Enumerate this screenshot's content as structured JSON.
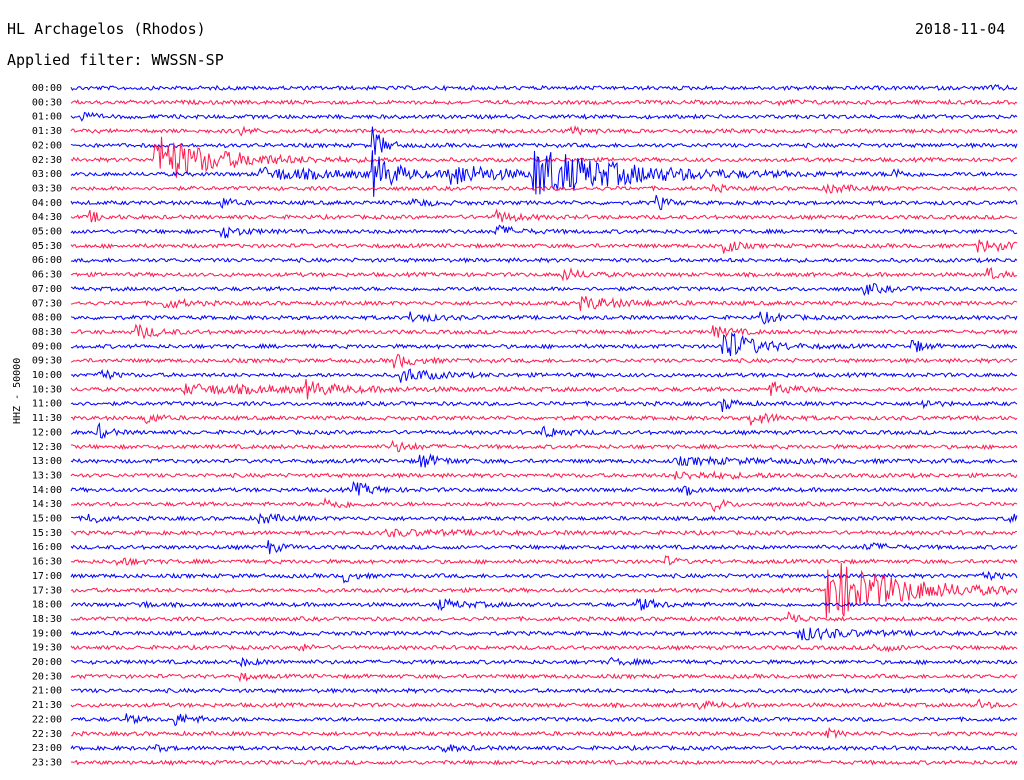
{
  "header": {
    "station": "HL Archagelos (Rhodos)",
    "date": "2018-11-04",
    "filter": "Applied filter: WWSSN-SP"
  },
  "axis": {
    "channel_label": "HHZ - 50000"
  },
  "chart_data": {
    "type": "line",
    "title": "",
    "row_labels": [
      "00:00",
      "00:30",
      "01:00",
      "01:30",
      "02:00",
      "02:30",
      "03:00",
      "03:30",
      "04:00",
      "04:30",
      "05:00",
      "05:30",
      "06:00",
      "06:30",
      "07:00",
      "07:30",
      "08:00",
      "08:30",
      "09:00",
      "09:30",
      "10:00",
      "10:30",
      "11:00",
      "11:30",
      "12:00",
      "12:30",
      "13:00",
      "13:30",
      "14:00",
      "14:30",
      "15:00",
      "15:30",
      "16:00",
      "16:30",
      "17:00",
      "17:30",
      "18:00",
      "18:30",
      "19:00",
      "19:30",
      "20:00",
      "20:30",
      "21:00",
      "21:30",
      "22:00",
      "22:30",
      "23:00",
      "23:30"
    ],
    "row_minutes": 30,
    "colors": [
      "#0000ff",
      "#ff1a4f"
    ],
    "events": [
      {
        "row": 0,
        "t": 0.97,
        "amp": 0.3,
        "dur": 0.015
      },
      {
        "row": 1,
        "t": 0.75,
        "amp": 0.25,
        "dur": 0.02
      },
      {
        "row": 2,
        "t": 0.01,
        "amp": 0.8,
        "dur": 0.01
      },
      {
        "row": 3,
        "t": 0.18,
        "amp": 0.6,
        "dur": 0.01
      },
      {
        "row": 3,
        "t": 0.53,
        "amp": 0.4,
        "dur": 0.02
      },
      {
        "row": 4,
        "t": 0.32,
        "amp": 2.5,
        "dur": 0.01
      },
      {
        "row": 5,
        "t": 0.09,
        "amp": 3.5,
        "dur": 0.06
      },
      {
        "row": 6,
        "t": 0.2,
        "amp": 0.8,
        "dur": 0.1
      },
      {
        "row": 6,
        "t": 0.32,
        "amp": 3.0,
        "dur": 0.02
      },
      {
        "row": 6,
        "t": 0.4,
        "amp": 1.5,
        "dur": 0.05
      },
      {
        "row": 6,
        "t": 0.49,
        "amp": 3.5,
        "dur": 0.09
      },
      {
        "row": 6,
        "t": 0.87,
        "amp": 0.7,
        "dur": 0.01
      },
      {
        "row": 7,
        "t": 0.68,
        "amp": 0.5,
        "dur": 0.01
      },
      {
        "row": 7,
        "t": 0.8,
        "amp": 0.6,
        "dur": 0.02
      },
      {
        "row": 8,
        "t": 0.16,
        "amp": 0.7,
        "dur": 0.01
      },
      {
        "row": 8,
        "t": 0.36,
        "amp": 0.5,
        "dur": 0.02
      },
      {
        "row": 8,
        "t": 0.62,
        "amp": 1.0,
        "dur": 0.01
      },
      {
        "row": 9,
        "t": 0.02,
        "amp": 0.8,
        "dur": 0.01
      },
      {
        "row": 9,
        "t": 0.45,
        "amp": 0.8,
        "dur": 0.02
      },
      {
        "row": 10,
        "t": 0.16,
        "amp": 0.8,
        "dur": 0.02
      },
      {
        "row": 10,
        "t": 0.45,
        "amp": 0.8,
        "dur": 0.02
      },
      {
        "row": 11,
        "t": 0.69,
        "amp": 1.6,
        "dur": 0.01
      },
      {
        "row": 11,
        "t": 0.96,
        "amp": 0.8,
        "dur": 0.03
      },
      {
        "row": 13,
        "t": 0.52,
        "amp": 0.8,
        "dur": 0.02
      },
      {
        "row": 13,
        "t": 0.97,
        "amp": 1.0,
        "dur": 0.01
      },
      {
        "row": 14,
        "t": 0.84,
        "amp": 0.7,
        "dur": 0.02
      },
      {
        "row": 15,
        "t": 0.1,
        "amp": 0.7,
        "dur": 0.02
      },
      {
        "row": 15,
        "t": 0.54,
        "amp": 0.9,
        "dur": 0.04
      },
      {
        "row": 16,
        "t": 0.36,
        "amp": 0.7,
        "dur": 0.02
      },
      {
        "row": 16,
        "t": 0.73,
        "amp": 0.7,
        "dur": 0.02
      },
      {
        "row": 17,
        "t": 0.07,
        "amp": 1.0,
        "dur": 0.02
      },
      {
        "row": 17,
        "t": 0.68,
        "amp": 0.7,
        "dur": 0.02
      },
      {
        "row": 18,
        "t": 0.69,
        "amp": 2.4,
        "dur": 0.03
      },
      {
        "row": 18,
        "t": 0.89,
        "amp": 1.0,
        "dur": 0.01
      },
      {
        "row": 19,
        "t": 0.34,
        "amp": 1.0,
        "dur": 0.02
      },
      {
        "row": 20,
        "t": 0.03,
        "amp": 1.0,
        "dur": 0.01
      },
      {
        "row": 20,
        "t": 0.35,
        "amp": 1.0,
        "dur": 0.03
      },
      {
        "row": 21,
        "t": 0.12,
        "amp": 0.6,
        "dur": 0.14
      },
      {
        "row": 21,
        "t": 0.25,
        "amp": 1.0,
        "dur": 0.02
      },
      {
        "row": 21,
        "t": 0.74,
        "amp": 1.0,
        "dur": 0.02
      },
      {
        "row": 22,
        "t": 0.69,
        "amp": 1.0,
        "dur": 0.01
      },
      {
        "row": 22,
        "t": 0.9,
        "amp": 0.7,
        "dur": 0.01
      },
      {
        "row": 23,
        "t": 0.08,
        "amp": 0.9,
        "dur": 0.01
      },
      {
        "row": 23,
        "t": 0.72,
        "amp": 0.9,
        "dur": 0.02
      },
      {
        "row": 24,
        "t": 0.03,
        "amp": 1.0,
        "dur": 0.01
      },
      {
        "row": 24,
        "t": 0.5,
        "amp": 0.8,
        "dur": 0.02
      },
      {
        "row": 25,
        "t": 0.34,
        "amp": 0.7,
        "dur": 0.02
      },
      {
        "row": 26,
        "t": 0.37,
        "amp": 1.0,
        "dur": 0.02
      },
      {
        "row": 26,
        "t": 0.64,
        "amp": 0.4,
        "dur": 0.1
      },
      {
        "row": 27,
        "t": 0.64,
        "amp": 0.4,
        "dur": 0.08
      },
      {
        "row": 28,
        "t": 0.3,
        "amp": 0.9,
        "dur": 0.02
      },
      {
        "row": 28,
        "t": 0.65,
        "amp": 0.6,
        "dur": 0.01
      },
      {
        "row": 29,
        "t": 0.27,
        "amp": 0.7,
        "dur": 0.02
      },
      {
        "row": 29,
        "t": 0.68,
        "amp": 1.0,
        "dur": 0.01
      },
      {
        "row": 30,
        "t": 0.02,
        "amp": 0.9,
        "dur": 0.01
      },
      {
        "row": 30,
        "t": 0.2,
        "amp": 0.7,
        "dur": 0.02
      },
      {
        "row": 30,
        "t": 0.99,
        "amp": 0.8,
        "dur": 0.01
      },
      {
        "row": 31,
        "t": 0.33,
        "amp": 0.4,
        "dur": 0.08
      },
      {
        "row": 32,
        "t": 0.21,
        "amp": 0.9,
        "dur": 0.01
      },
      {
        "row": 32,
        "t": 0.84,
        "amp": 0.6,
        "dur": 0.02
      },
      {
        "row": 33,
        "t": 0.05,
        "amp": 0.5,
        "dur": 0.02
      },
      {
        "row": 33,
        "t": 0.63,
        "amp": 0.6,
        "dur": 0.01
      },
      {
        "row": 34,
        "t": 0.29,
        "amp": 0.8,
        "dur": 0.01
      },
      {
        "row": 34,
        "t": 0.96,
        "amp": 0.6,
        "dur": 0.02
      },
      {
        "row": 35,
        "t": 0.8,
        "amp": 4.5,
        "dur": 0.07
      },
      {
        "row": 36,
        "t": 0.07,
        "amp": 0.6,
        "dur": 0.01
      },
      {
        "row": 36,
        "t": 0.39,
        "amp": 0.6,
        "dur": 0.03
      },
      {
        "row": 36,
        "t": 0.6,
        "amp": 0.8,
        "dur": 0.02
      },
      {
        "row": 37,
        "t": 0.76,
        "amp": 1.0,
        "dur": 0.01
      },
      {
        "row": 38,
        "t": 0.77,
        "amp": 0.9,
        "dur": 0.05
      },
      {
        "row": 39,
        "t": 0.24,
        "amp": 0.7,
        "dur": 0.01
      },
      {
        "row": 39,
        "t": 0.85,
        "amp": 0.5,
        "dur": 0.02
      },
      {
        "row": 40,
        "t": 0.18,
        "amp": 0.4,
        "dur": 0.02
      },
      {
        "row": 40,
        "t": 0.57,
        "amp": 0.4,
        "dur": 0.02
      },
      {
        "row": 41,
        "t": 0.18,
        "amp": 0.5,
        "dur": 0.01
      },
      {
        "row": 43,
        "t": 0.66,
        "amp": 0.5,
        "dur": 0.02
      },
      {
        "row": 43,
        "t": 0.96,
        "amp": 0.6,
        "dur": 0.01
      },
      {
        "row": 44,
        "t": 0.06,
        "amp": 0.6,
        "dur": 0.01
      },
      {
        "row": 44,
        "t": 0.11,
        "amp": 0.8,
        "dur": 0.02
      },
      {
        "row": 45,
        "t": 0.8,
        "amp": 0.6,
        "dur": 0.01
      },
      {
        "row": 46,
        "t": 0.09,
        "amp": 0.4,
        "dur": 0.01
      },
      {
        "row": 46,
        "t": 0.39,
        "amp": 0.5,
        "dur": 0.02
      }
    ]
  }
}
